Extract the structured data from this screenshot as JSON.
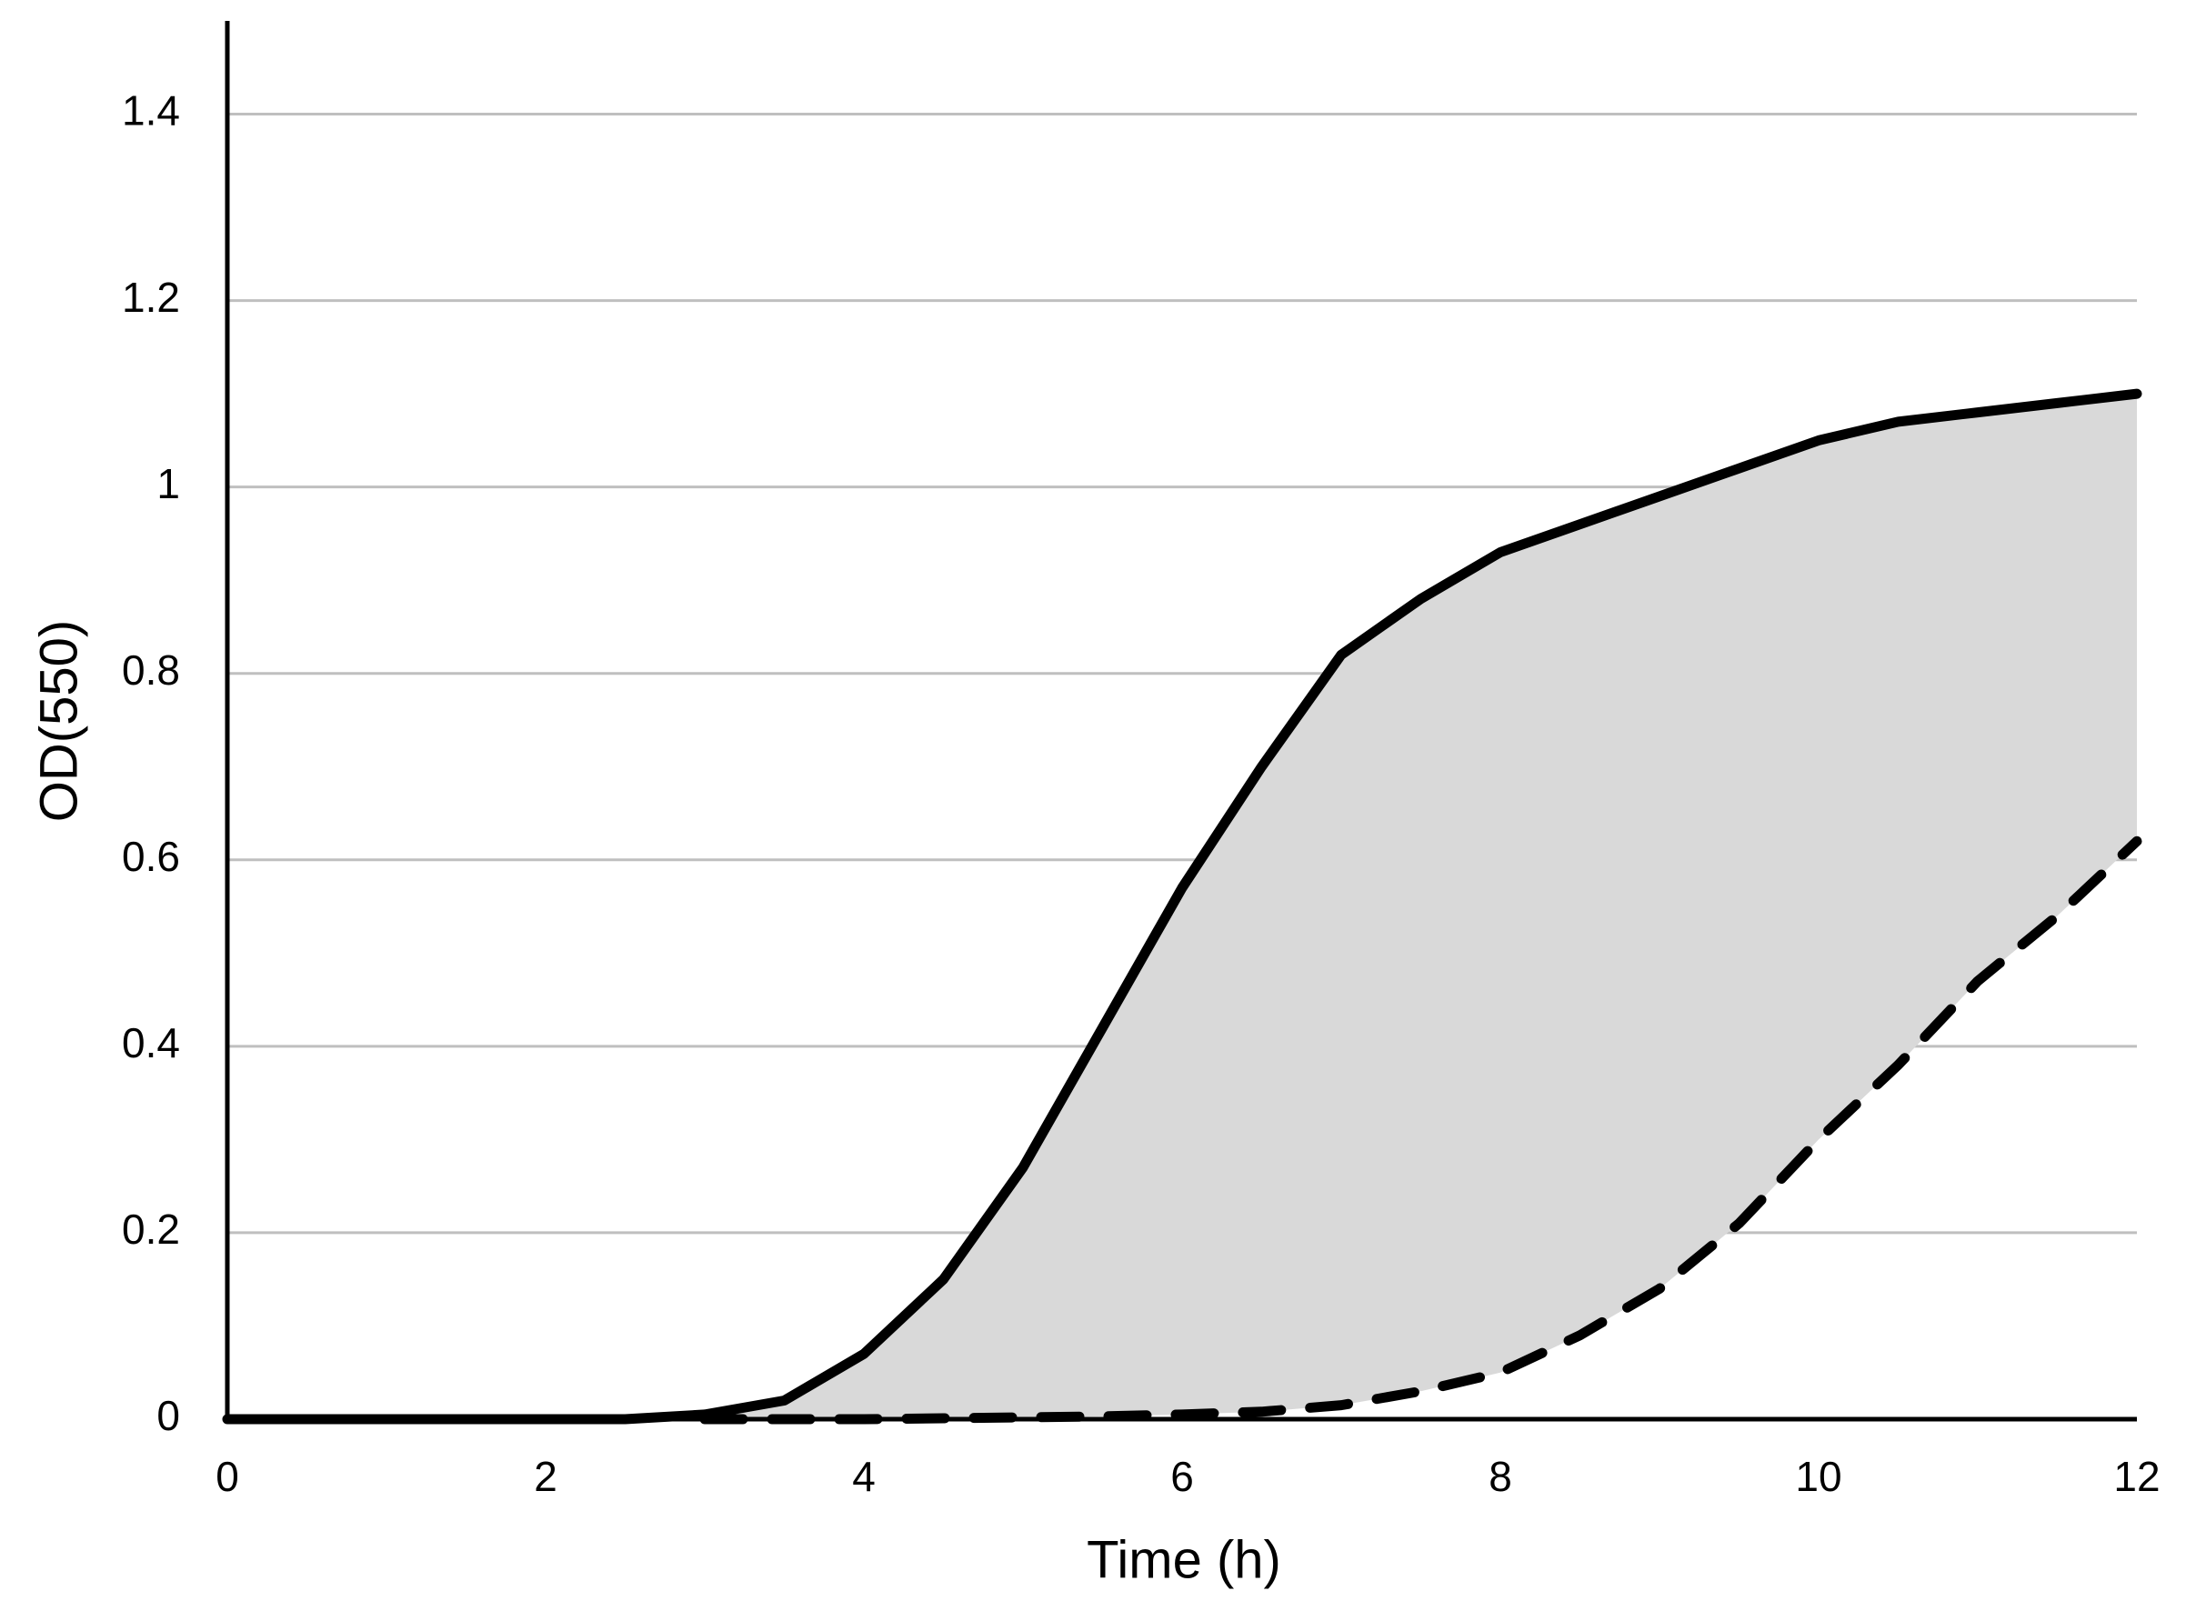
{
  "chart_data": {
    "type": "line",
    "x_label": "Time (h)",
    "y_label": "OD(550)",
    "x": [
      0,
      0.5,
      1,
      1.5,
      2,
      2.5,
      3,
      3.5,
      4,
      4.5,
      5,
      5.5,
      6,
      6.5,
      7,
      7.5,
      8,
      8.5,
      9,
      9.5,
      10,
      10.5,
      11,
      11.5,
      12
    ],
    "series": [
      {
        "color": "#000000",
        "line_style": "solid",
        "values": [
          0,
          0,
          0,
          0,
          0,
          0,
          0.005,
          0.02,
          0.07,
          0.15,
          0.27,
          0.42,
          0.57,
          0.7,
          0.82,
          0.88,
          0.93,
          0.96,
          0.99,
          1.02,
          1.05,
          1.07,
          1.08,
          1.09,
          1.1
        ]
      },
      {
        "color": "#000000",
        "line_style": "dashed",
        "values": [
          null,
          null,
          null,
          null,
          null,
          null,
          0,
          0,
          0,
          0.001,
          0.002,
          0.003,
          0.005,
          0.008,
          0.015,
          0.03,
          0.05,
          0.09,
          0.14,
          0.21,
          0.3,
          0.38,
          0.47,
          0.54,
          0.62
        ]
      }
    ],
    "fill_between": true,
    "fill_color": "#d9d9d9",
    "xlim": [
      0,
      12
    ],
    "xticks": [
      0,
      2,
      4,
      6,
      8,
      10,
      12
    ],
    "ylim": [
      0,
      1.5
    ],
    "yticks": [
      0,
      0.2,
      0.4,
      0.6,
      0.8,
      1,
      1.2,
      1.4
    ],
    "grid": true
  }
}
